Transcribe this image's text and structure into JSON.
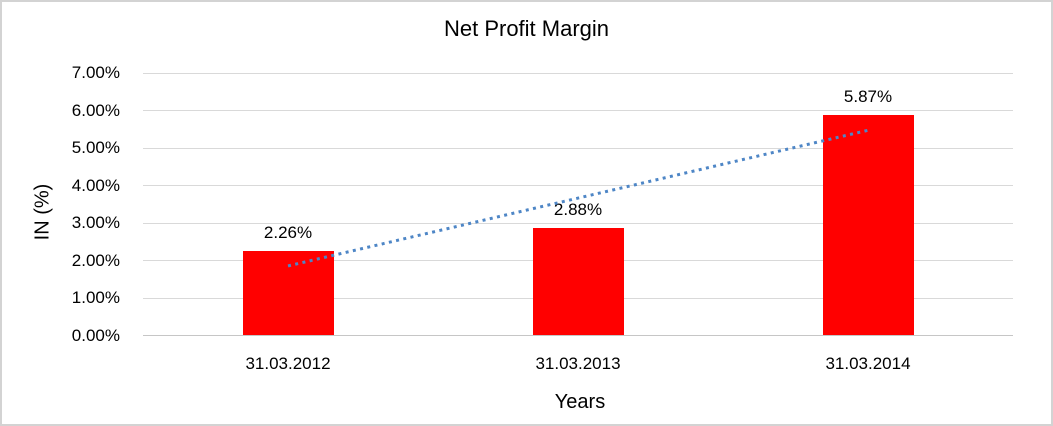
{
  "chart_data": {
    "type": "bar",
    "title": "Net Profit Margin",
    "categories": [
      "31.03.2012",
      "31.03.2013",
      "31.03.2014"
    ],
    "values": [
      2.26,
      2.88,
      5.87
    ],
    "value_labels": [
      "2.26%",
      "2.88%",
      "5.87%"
    ],
    "xlabel": "Years",
    "ylabel": "IN (%)",
    "ylim": [
      0,
      7
    ],
    "ytick_step": 1,
    "ytick_labels": [
      "0.00%",
      "1.00%",
      "2.00%",
      "3.00%",
      "4.00%",
      "5.00%",
      "6.00%",
      "7.00%"
    ],
    "grid": true,
    "legend_position": "none",
    "bar_color": "#FF0000",
    "gridline_color": "#D9D9D9",
    "axis_line_color": "#C6C6C6",
    "frame_border_color": "#D3D3D3",
    "text_color": "#000000",
    "trendline": {
      "type": "linear",
      "style": "dotted",
      "color": "#4E86C6"
    }
  }
}
